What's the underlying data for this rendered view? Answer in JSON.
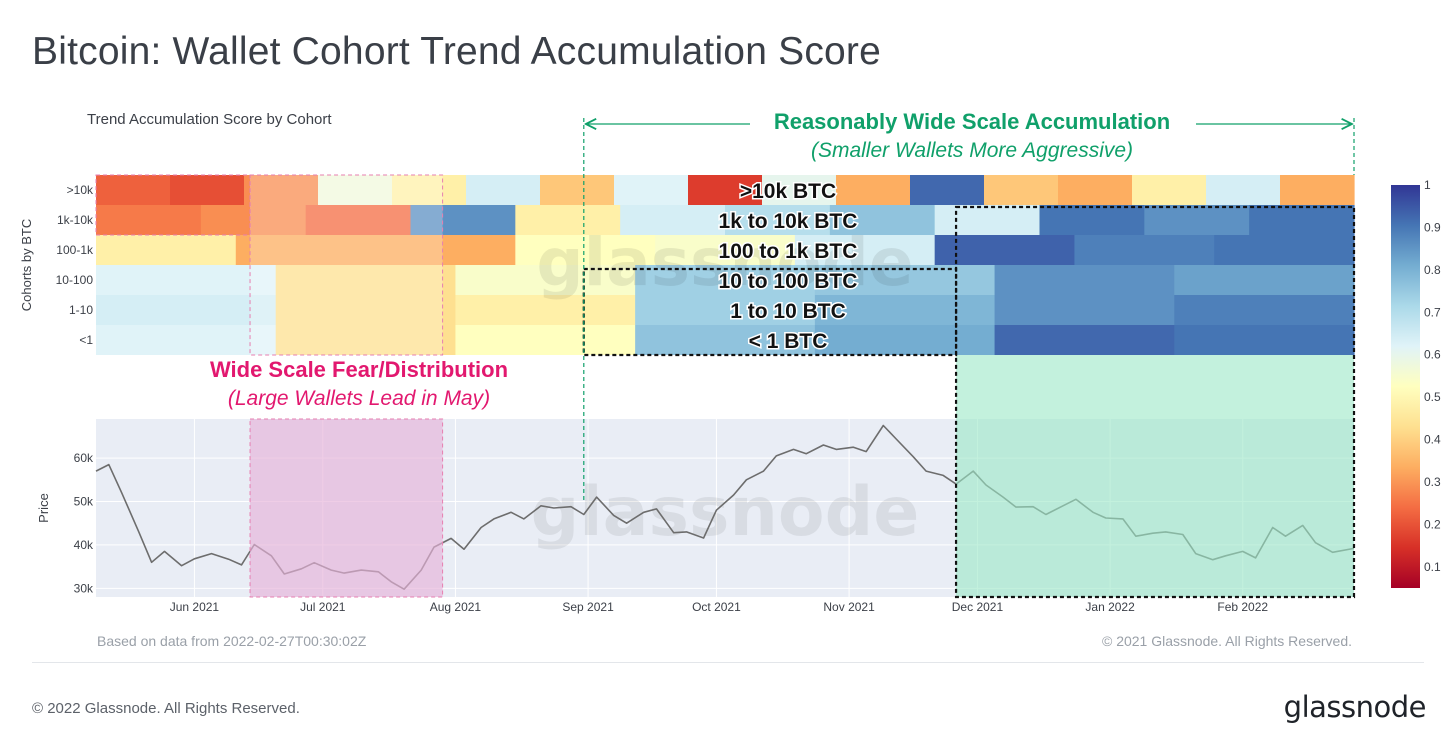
{
  "page": {
    "title": "Bitcoin: Wallet Cohort Trend Accumulation Score",
    "footer_copyright": "© 2022 Glassnode. All Rights Reserved.",
    "brand": "glassnode"
  },
  "chart_data": {
    "type": "heatmap",
    "title": "Trend Accumulation Score by Cohort",
    "ylabel": "Cohorts by BTC",
    "watermark": "glassnode",
    "source_note": "Based on data from 2022-02-27T00:30:02Z",
    "chart_copyright": "© 2021 Glassnode. All Rights Reserved.",
    "date_range": [
      "2021-05-09",
      "2022-02-27"
    ],
    "cohorts": [
      ">10k",
      "1k-10k",
      "100-1k",
      "10-100",
      "1-10",
      "<1"
    ],
    "colorbar": {
      "range": [
        0.05,
        1
      ],
      "ticks": [
        "1",
        "0.9",
        "0.8",
        "0.7",
        "0.6",
        "0.5",
        "0.4",
        "0.3",
        "0.2",
        "0.1"
      ],
      "colors": [
        "#a50026",
        "#d73027",
        "#f46d43",
        "#fdae61",
        "#fee090",
        "#ffffbf",
        "#e0f3f8",
        "#abd9e9",
        "#74add1",
        "#4575b4",
        "#313695"
      ]
    },
    "heatmap_segments": [
      {
        "cohort": ">10k",
        "values": [
          0.18,
          0.15,
          0.25,
          0.55,
          0.45,
          0.62,
          0.35,
          0.6,
          0.12,
          0.58,
          0.3,
          0.92,
          0.35,
          0.3,
          0.45,
          0.62,
          0.3
        ]
      },
      {
        "cohort": "1k-10k",
        "values": [
          0.22,
          0.25,
          0.2,
          0.85,
          0.45,
          0.62,
          0.68,
          0.75,
          0.62,
          0.9,
          0.85,
          0.9
        ]
      },
      {
        "cohort": "100-1k",
        "values": [
          0.45,
          0.3,
          0.3,
          0.5,
          0.52,
          0.62,
          0.93,
          0.88,
          0.9
        ]
      },
      {
        "cohort": "10-100",
        "values": [
          0.6,
          0.4,
          0.52,
          0.72,
          0.74,
          0.85,
          0.82
        ]
      },
      {
        "cohort": "1-10",
        "values": [
          0.62,
          0.4,
          0.45,
          0.72,
          0.78,
          0.85,
          0.88
        ]
      },
      {
        "cohort": "<1",
        "values": [
          0.6,
          0.4,
          0.5,
          0.75,
          0.8,
          0.92,
          0.9
        ]
      }
    ],
    "price_series": {
      "name": "Price",
      "yticks": [
        "60k",
        "50k",
        "40k",
        "30k"
      ],
      "ylim": [
        28000,
        69000
      ],
      "x_dates": [
        "2021-05-09",
        "2021-05-12",
        "2021-05-15",
        "2021-05-19",
        "2021-05-22",
        "2021-05-25",
        "2021-05-29",
        "2021-06-01",
        "2021-06-05",
        "2021-06-09",
        "2021-06-12",
        "2021-06-15",
        "2021-06-19",
        "2021-06-22",
        "2021-06-26",
        "2021-06-29",
        "2021-07-03",
        "2021-07-06",
        "2021-07-10",
        "2021-07-14",
        "2021-07-17",
        "2021-07-20",
        "2021-07-24",
        "2021-07-27",
        "2021-07-31",
        "2021-08-03",
        "2021-08-07",
        "2021-08-10",
        "2021-08-14",
        "2021-08-17",
        "2021-08-21",
        "2021-08-24",
        "2021-08-28",
        "2021-08-31",
        "2021-09-03",
        "2021-09-07",
        "2021-09-10",
        "2021-09-14",
        "2021-09-17",
        "2021-09-21",
        "2021-09-24",
        "2021-09-28",
        "2021-10-01",
        "2021-10-05",
        "2021-10-08",
        "2021-10-12",
        "2021-10-15",
        "2021-10-19",
        "2021-10-22",
        "2021-10-26",
        "2021-10-29",
        "2021-11-02",
        "2021-11-05",
        "2021-11-09",
        "2021-11-12",
        "2021-11-16",
        "2021-11-19",
        "2021-11-23",
        "2021-11-26",
        "2021-11-30",
        "2021-12-03",
        "2021-12-07",
        "2021-12-10",
        "2021-12-14",
        "2021-12-17",
        "2021-12-21",
        "2021-12-24",
        "2021-12-28",
        "2021-12-31",
        "2022-01-04",
        "2022-01-07",
        "2022-01-11",
        "2022-01-14",
        "2022-01-18",
        "2022-01-21",
        "2022-01-25",
        "2022-01-28",
        "2022-02-01",
        "2022-02-04",
        "2022-02-08",
        "2022-02-11",
        "2022-02-15",
        "2022-02-18",
        "2022-02-22",
        "2022-02-27"
      ],
      "values": [
        57000,
        58500,
        52000,
        43000,
        36000,
        38500,
        35200,
        36800,
        38000,
        36700,
        35400,
        40100,
        37500,
        33300,
        34500,
        35900,
        34200,
        33500,
        34200,
        33800,
        31500,
        29800,
        34200,
        39500,
        41500,
        39000,
        44000,
        46000,
        47500,
        46000,
        49000,
        48500,
        48800,
        47000,
        51000,
        46800,
        45000,
        47500,
        48300,
        42800,
        43000,
        41600,
        48000,
        51500,
        55000,
        57000,
        60500,
        62000,
        61000,
        63000,
        62000,
        62500,
        61500,
        67500,
        64400,
        60300,
        57000,
        56000,
        54000,
        57000,
        53800,
        51000,
        48700,
        48800,
        47000,
        49000,
        50500,
        47500,
        46200,
        46000,
        42000,
        42700,
        43000,
        42400,
        38000,
        36600,
        37500,
        38500,
        37000,
        44000,
        42000,
        44500,
        40500,
        38300,
        39200
      ]
    },
    "x_tick_labels": [
      "Jun 2021",
      "Jul 2021",
      "Aug 2021",
      "Sep 2021",
      "Oct 2021",
      "Nov 2021",
      "Dec 2021",
      "Jan 2022",
      "Feb 2022"
    ],
    "annotations": {
      "fear_title": "Wide Scale Fear/Distribution",
      "fear_subtitle": "(Large Wallets Lead in May)",
      "accum_title": "Reasonably Wide Scale Accumulation",
      "accum_subtitle": "(Smaller Wallets More Aggressive)",
      "cohort_labels": [
        ">10k BTC",
        "1k to 10k BTC",
        "100 to 1k BTC",
        "10 to 100 BTC",
        "1 to 10 BTC",
        "< 1 BTC"
      ],
      "fear_period": [
        "2021-06-14",
        "2021-07-29"
      ],
      "accum_period": [
        "2021-08-31",
        "2022-02-27"
      ],
      "strong_period": [
        "2021-11-26",
        "2022-02-27"
      ],
      "colors": {
        "fear": "#e2186f",
        "accum": "#10a06a"
      }
    }
  }
}
